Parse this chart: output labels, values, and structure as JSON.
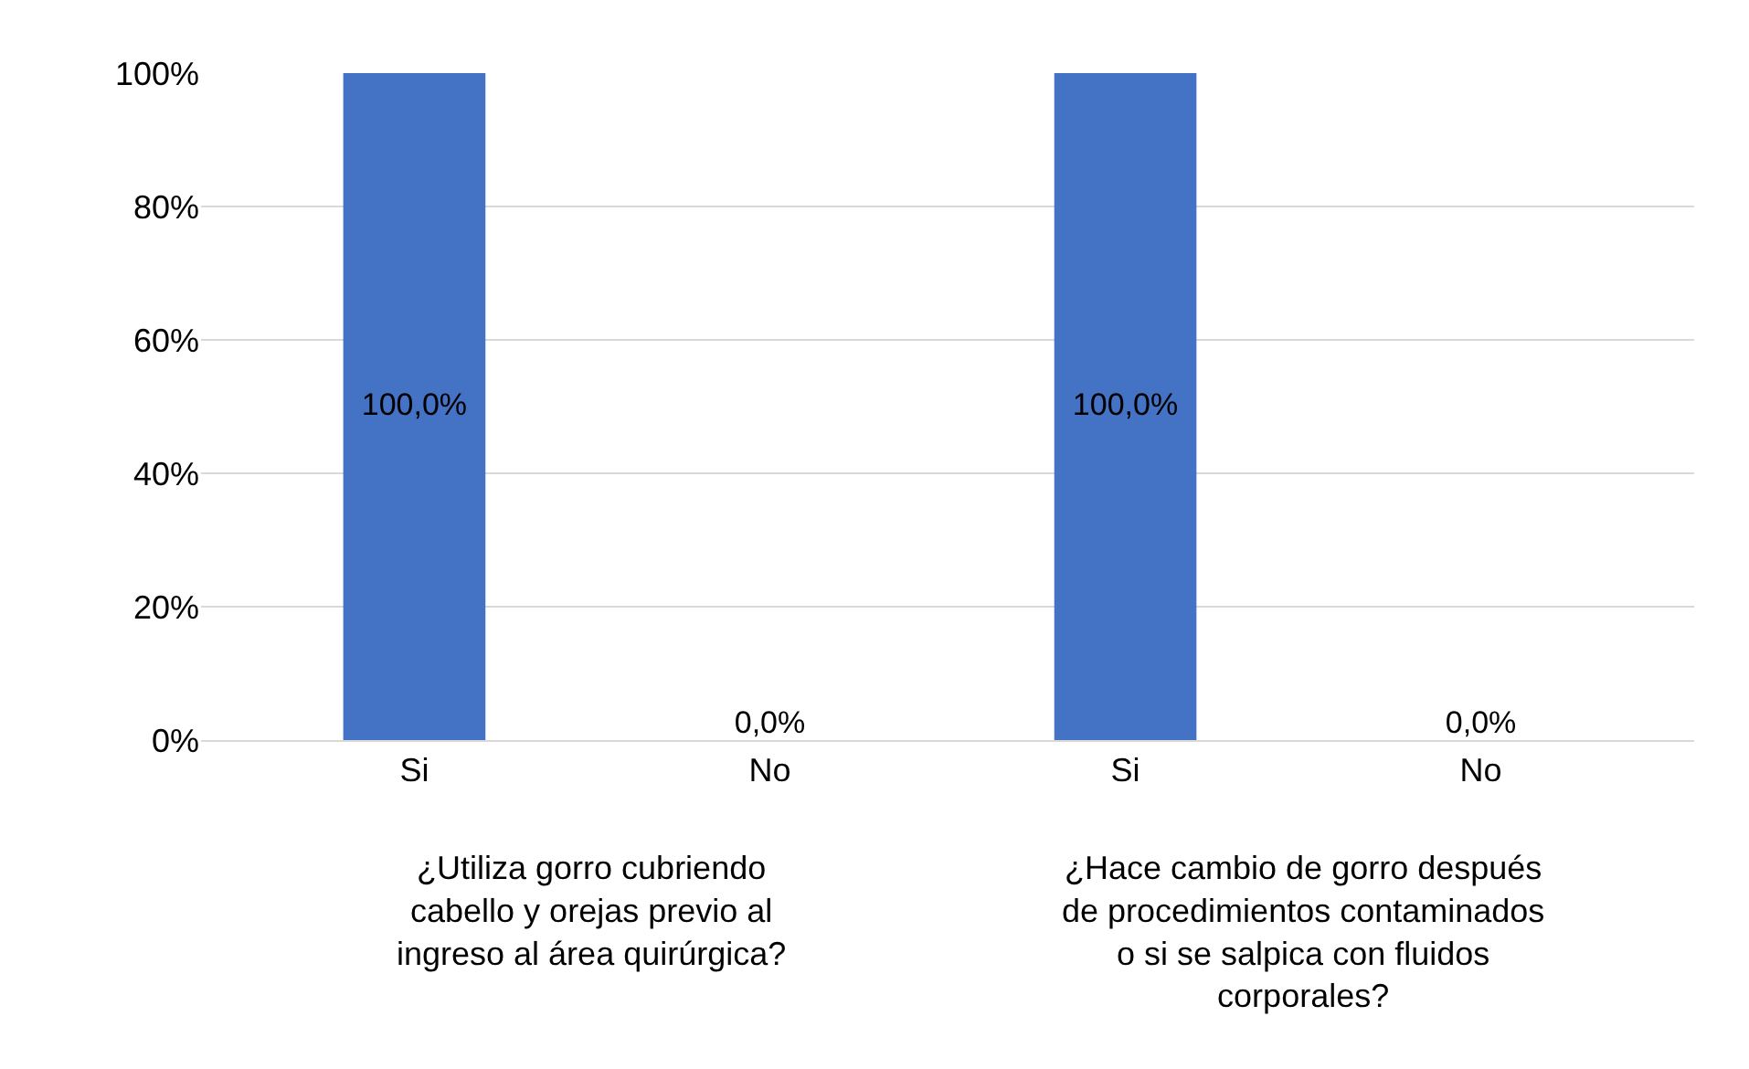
{
  "chart_data": {
    "type": "bar",
    "categories": [
      "Si",
      "No",
      "Si",
      "No"
    ],
    "values": [
      100,
      0,
      100,
      0
    ],
    "value_labels": [
      "100,0%",
      "0,0%",
      "100,0%",
      "0,0%"
    ],
    "color": "#4472c4",
    "ylim": [
      0,
      100
    ],
    "yticks": [
      {
        "value": 0,
        "label": "0%"
      },
      {
        "value": 20,
        "label": "20%"
      },
      {
        "value": 40,
        "label": "40%"
      },
      {
        "value": 60,
        "label": "60%"
      },
      {
        "value": 80,
        "label": "80%"
      },
      {
        "value": 100,
        "label": "100%"
      }
    ],
    "grid": "y",
    "annotations": [
      "¿Utiliza gorro cubriendo cabello y orejas previo al ingreso al área quirúrgica?",
      "¿Hace cambio de gorro después de procedimientos contaminados o si se salpica con fluidos corporales?"
    ]
  }
}
